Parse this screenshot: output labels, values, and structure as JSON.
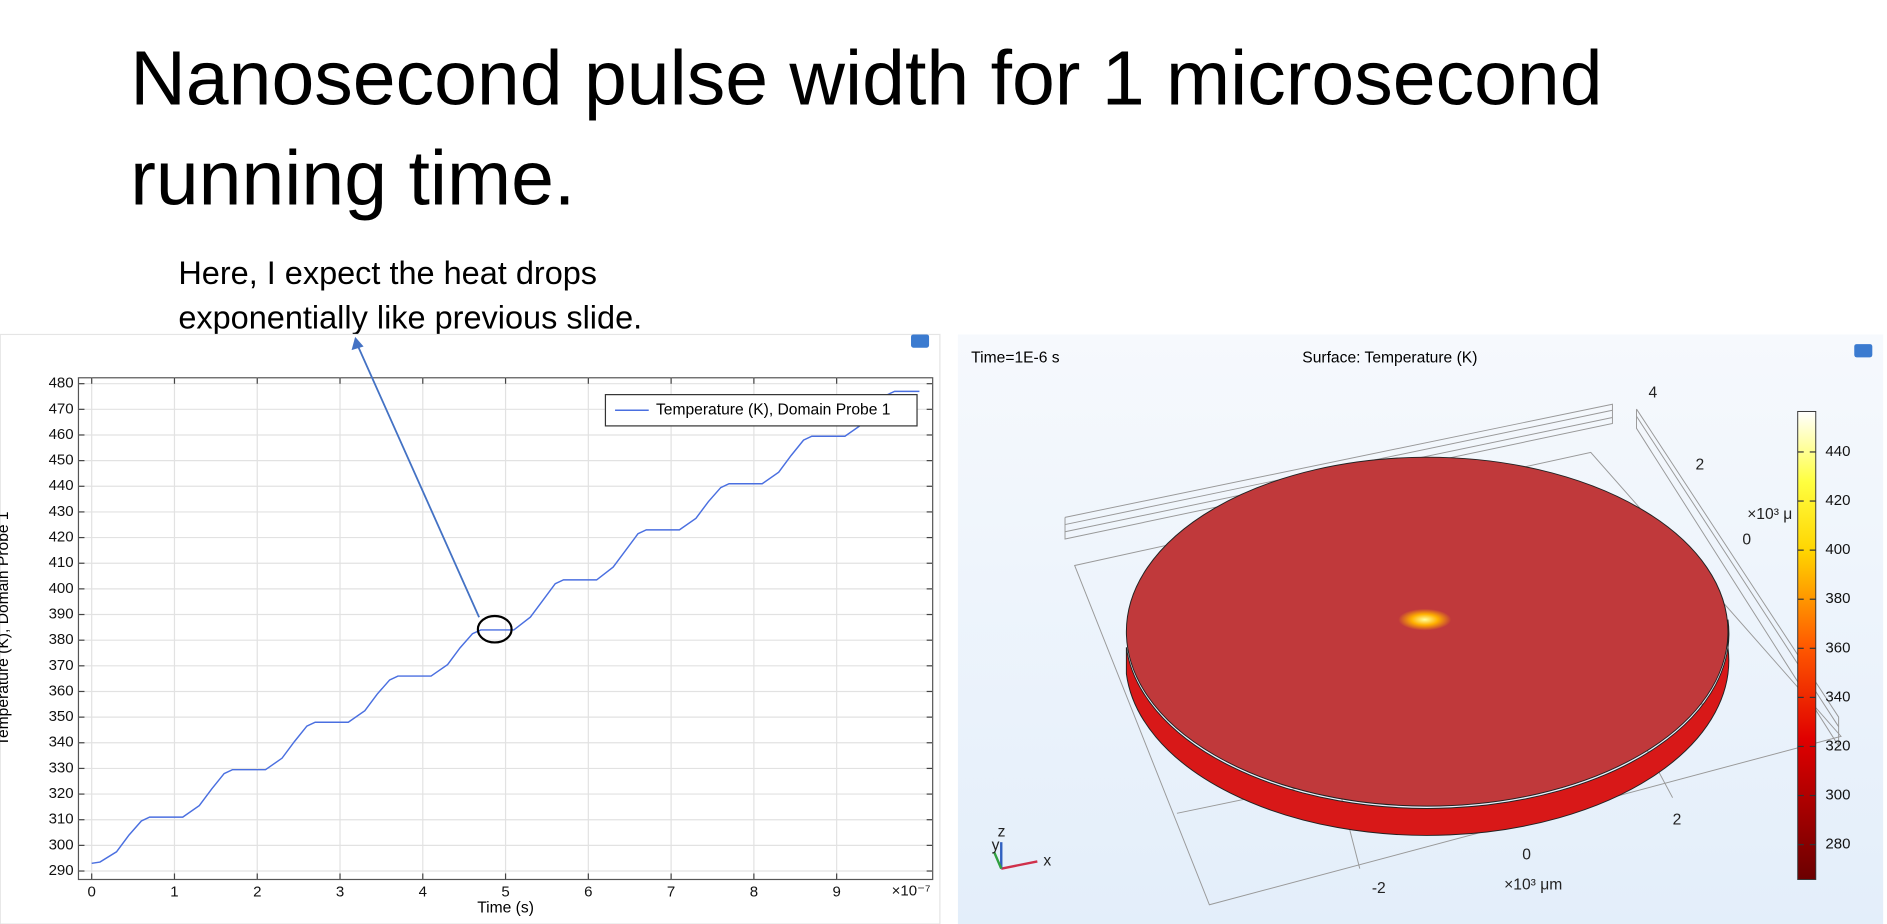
{
  "slide": {
    "title_lines": [
      "Nanosecond pulse width for 1 microsecond",
      "running time."
    ],
    "annotation_lines": [
      "Here, I expect the heat drops",
      "exponentially like previous slide."
    ]
  },
  "chart_data": [
    {
      "type": "line",
      "x_label": "Time (s)",
      "y_label": "Temperature (K), Domain Probe 1",
      "x_multiplier": "×10⁻⁷",
      "x": [
        0,
        0.1,
        0.3,
        0.45,
        0.6,
        0.7,
        1.1,
        1.3,
        1.45,
        1.6,
        1.7,
        2.1,
        2.3,
        2.45,
        2.6,
        2.7,
        3.1,
        3.3,
        3.45,
        3.6,
        3.7,
        4.1,
        4.3,
        4.45,
        4.6,
        4.7,
        5.1,
        5.3,
        5.45,
        5.6,
        5.7,
        6.1,
        6.3,
        6.45,
        6.6,
        6.7,
        7.1,
        7.3,
        7.45,
        7.6,
        7.7,
        8.1,
        8.3,
        8.45,
        8.6,
        8.7,
        9.1,
        9.3,
        9.45,
        9.6,
        9.7,
        10.0
      ],
      "series": [
        {
          "name": "Temperature (K), Domain Probe 1",
          "color": "#4a6fe0",
          "values": [
            293,
            293.5,
            297.5,
            304,
            309.5,
            311,
            311,
            315.5,
            322,
            328,
            329.5,
            329.5,
            334,
            340.5,
            346.5,
            348,
            348,
            352.5,
            359,
            364.5,
            366,
            366,
            370.5,
            377,
            382.5,
            384,
            384,
            389,
            395.5,
            402,
            403.5,
            403.5,
            408.5,
            415,
            421.5,
            423,
            423,
            427.5,
            434,
            439.5,
            441,
            441,
            445.5,
            452,
            458,
            459.5,
            459.5,
            464,
            470,
            475.5,
            477,
            477
          ]
        }
      ],
      "xlim": [
        -0.16,
        10.16
      ],
      "xticks": [
        0,
        1,
        2,
        3,
        4,
        5,
        6,
        7,
        8,
        9
      ],
      "ylim": [
        286.7,
        482.3
      ],
      "yticks": [
        290,
        300,
        310,
        320,
        330,
        340,
        350,
        360,
        370,
        380,
        390,
        400,
        410,
        420,
        430,
        440,
        450,
        460,
        470,
        480
      ],
      "grid": true,
      "legend": "top-right"
    },
    {
      "type": "surface",
      "subtitle": "Time=1E-6 s",
      "title": "Surface: Temperature (K)",
      "ylim": [
        265.8,
        456.5
      ],
      "yticks": [
        280,
        300,
        320,
        340,
        360,
        380,
        400,
        420,
        440
      ],
      "axis_texts": [
        "4",
        "2",
        "0",
        "×10³ μ",
        "2",
        "0",
        "-2",
        "×10³ μm",
        "x",
        "y",
        "z"
      ]
    }
  ]
}
